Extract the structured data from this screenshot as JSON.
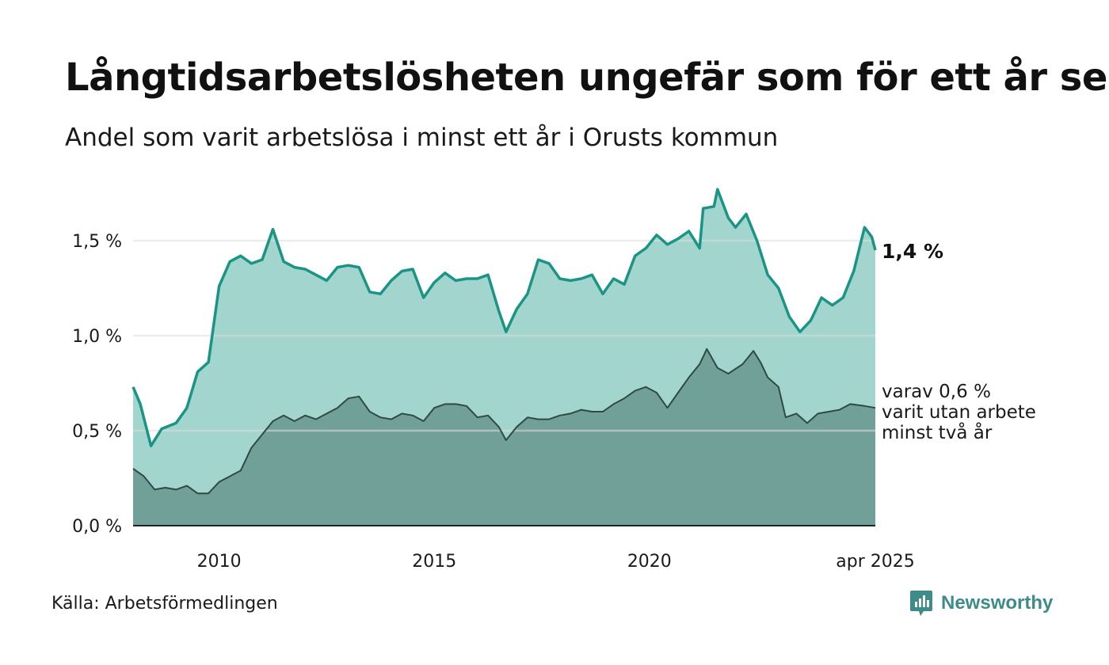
{
  "title": "Långtidsarbetslösheten ungefär som för ett år sen",
  "subtitle": "Andel som varit arbetslösa i minst ett år i Orusts kommun",
  "source": "Källa: Arbetsförmedlingen",
  "brand": "Newsworthy",
  "colors": {
    "total_line": "#1a9585",
    "total_fill": "#a3d5cf",
    "sub_line": "#2f4a44",
    "sub_fill": "#71a098",
    "grid": "#dddddd",
    "brand": "#3d8c8a"
  },
  "labels": {
    "total_end": "1,4 %",
    "sub_lines": [
      "varav 0,6 %",
      "varit utan arbete",
      "minst två år"
    ]
  },
  "chart_data": {
    "type": "area",
    "x_start": "2008-01",
    "x_end": "2025-04",
    "frequency": "monthly",
    "ylim": [
      0,
      1.8
    ],
    "yticks": [
      0,
      0.5,
      1.0,
      1.5
    ],
    "ytick_labels": [
      "0,0 %",
      "0,5 %",
      "1,0 %",
      "1,5 %"
    ],
    "xtick_labels": [
      {
        "date": "2010-01",
        "label": "2010"
      },
      {
        "date": "2015-01",
        "label": "2015"
      },
      {
        "date": "2020-01",
        "label": "2020"
      },
      {
        "date": "2025-04",
        "label": "apr 2025"
      }
    ],
    "grid": true,
    "series": [
      {
        "role": "total",
        "points": [
          [
            "2008-01",
            0.73
          ],
          [
            "2008-03",
            0.64
          ],
          [
            "2008-06",
            0.42
          ],
          [
            "2008-09",
            0.51
          ],
          [
            "2009-01",
            0.54
          ],
          [
            "2009-04",
            0.62
          ],
          [
            "2009-07",
            0.81
          ],
          [
            "2009-10",
            0.86
          ],
          [
            "2010-01",
            1.26
          ],
          [
            "2010-04",
            1.39
          ],
          [
            "2010-07",
            1.42
          ],
          [
            "2010-10",
            1.38
          ],
          [
            "2011-01",
            1.4
          ],
          [
            "2011-04",
            1.56
          ],
          [
            "2011-07",
            1.39
          ],
          [
            "2011-10",
            1.36
          ],
          [
            "2012-01",
            1.35
          ],
          [
            "2012-04",
            1.32
          ],
          [
            "2012-07",
            1.29
          ],
          [
            "2012-10",
            1.36
          ],
          [
            "2013-01",
            1.37
          ],
          [
            "2013-04",
            1.36
          ],
          [
            "2013-07",
            1.23
          ],
          [
            "2013-10",
            1.22
          ],
          [
            "2014-01",
            1.29
          ],
          [
            "2014-04",
            1.34
          ],
          [
            "2014-07",
            1.35
          ],
          [
            "2014-10",
            1.2
          ],
          [
            "2015-01",
            1.28
          ],
          [
            "2015-04",
            1.33
          ],
          [
            "2015-07",
            1.29
          ],
          [
            "2015-10",
            1.3
          ],
          [
            "2016-01",
            1.3
          ],
          [
            "2016-04",
            1.32
          ],
          [
            "2016-07",
            1.13
          ],
          [
            "2016-09",
            1.02
          ],
          [
            "2016-12",
            1.14
          ],
          [
            "2017-03",
            1.22
          ],
          [
            "2017-06",
            1.4
          ],
          [
            "2017-09",
            1.38
          ],
          [
            "2017-12",
            1.3
          ],
          [
            "2018-03",
            1.29
          ],
          [
            "2018-06",
            1.3
          ],
          [
            "2018-09",
            1.32
          ],
          [
            "2018-12",
            1.22
          ],
          [
            "2019-03",
            1.3
          ],
          [
            "2019-06",
            1.27
          ],
          [
            "2019-09",
            1.42
          ],
          [
            "2019-12",
            1.46
          ],
          [
            "2020-03",
            1.53
          ],
          [
            "2020-06",
            1.48
          ],
          [
            "2020-09",
            1.51
          ],
          [
            "2020-12",
            1.55
          ],
          [
            "2021-03",
            1.46
          ],
          [
            "2021-04",
            1.67
          ],
          [
            "2021-07",
            1.68
          ],
          [
            "2021-08",
            1.77
          ],
          [
            "2021-11",
            1.62
          ],
          [
            "2022-01",
            1.57
          ],
          [
            "2022-04",
            1.64
          ],
          [
            "2022-07",
            1.5
          ],
          [
            "2022-10",
            1.32
          ],
          [
            "2023-01",
            1.25
          ],
          [
            "2023-04",
            1.1
          ],
          [
            "2023-07",
            1.02
          ],
          [
            "2023-10",
            1.08
          ],
          [
            "2024-01",
            1.2
          ],
          [
            "2024-04",
            1.16
          ],
          [
            "2024-07",
            1.2
          ],
          [
            "2024-10",
            1.34
          ],
          [
            "2025-01",
            1.57
          ],
          [
            "2025-03",
            1.52
          ],
          [
            "2025-04",
            1.45
          ]
        ]
      },
      {
        "role": "sub",
        "points": [
          [
            "2008-01",
            0.3
          ],
          [
            "2008-04",
            0.26
          ],
          [
            "2008-07",
            0.19
          ],
          [
            "2008-10",
            0.2
          ],
          [
            "2009-01",
            0.19
          ],
          [
            "2009-04",
            0.21
          ],
          [
            "2009-07",
            0.17
          ],
          [
            "2009-10",
            0.17
          ],
          [
            "2010-01",
            0.23
          ],
          [
            "2010-04",
            0.26
          ],
          [
            "2010-07",
            0.29
          ],
          [
            "2010-10",
            0.41
          ],
          [
            "2011-01",
            0.48
          ],
          [
            "2011-04",
            0.55
          ],
          [
            "2011-07",
            0.58
          ],
          [
            "2011-10",
            0.55
          ],
          [
            "2012-01",
            0.58
          ],
          [
            "2012-04",
            0.56
          ],
          [
            "2012-07",
            0.59
          ],
          [
            "2012-10",
            0.62
          ],
          [
            "2013-01",
            0.67
          ],
          [
            "2013-04",
            0.68
          ],
          [
            "2013-07",
            0.6
          ],
          [
            "2013-10",
            0.57
          ],
          [
            "2014-01",
            0.56
          ],
          [
            "2014-04",
            0.59
          ],
          [
            "2014-07",
            0.58
          ],
          [
            "2014-10",
            0.55
          ],
          [
            "2015-01",
            0.62
          ],
          [
            "2015-04",
            0.64
          ],
          [
            "2015-07",
            0.64
          ],
          [
            "2015-10",
            0.63
          ],
          [
            "2016-01",
            0.57
          ],
          [
            "2016-04",
            0.58
          ],
          [
            "2016-07",
            0.52
          ],
          [
            "2016-09",
            0.45
          ],
          [
            "2016-12",
            0.52
          ],
          [
            "2017-03",
            0.57
          ],
          [
            "2017-06",
            0.56
          ],
          [
            "2017-09",
            0.56
          ],
          [
            "2017-12",
            0.58
          ],
          [
            "2018-03",
            0.59
          ],
          [
            "2018-06",
            0.61
          ],
          [
            "2018-09",
            0.6
          ],
          [
            "2018-12",
            0.6
          ],
          [
            "2019-03",
            0.64
          ],
          [
            "2019-06",
            0.67
          ],
          [
            "2019-09",
            0.71
          ],
          [
            "2019-12",
            0.73
          ],
          [
            "2020-03",
            0.7
          ],
          [
            "2020-06",
            0.62
          ],
          [
            "2020-09",
            0.7
          ],
          [
            "2020-12",
            0.78
          ],
          [
            "2021-03",
            0.85
          ],
          [
            "2021-05",
            0.93
          ],
          [
            "2021-08",
            0.83
          ],
          [
            "2021-11",
            0.8
          ],
          [
            "2022-03",
            0.85
          ],
          [
            "2022-06",
            0.92
          ],
          [
            "2022-08",
            0.86
          ],
          [
            "2022-10",
            0.78
          ],
          [
            "2023-01",
            0.73
          ],
          [
            "2023-03",
            0.57
          ],
          [
            "2023-06",
            0.59
          ],
          [
            "2023-09",
            0.54
          ],
          [
            "2023-12",
            0.59
          ],
          [
            "2024-03",
            0.6
          ],
          [
            "2024-06",
            0.61
          ],
          [
            "2024-09",
            0.64
          ],
          [
            "2025-01",
            0.63
          ],
          [
            "2025-04",
            0.62
          ]
        ]
      }
    ]
  }
}
